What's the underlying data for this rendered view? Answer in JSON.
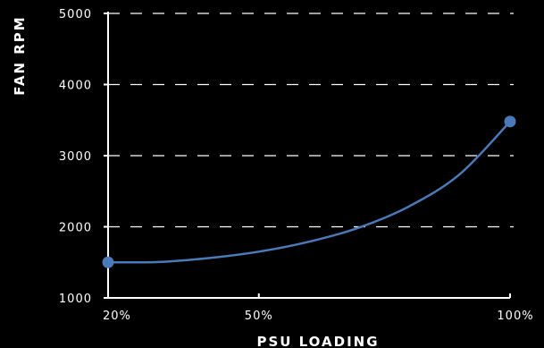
{
  "chart_data": {
    "type": "line",
    "xlabel": "PSU LOADING",
    "ylabel": "FAN RPM",
    "x_ticks": [
      "20%",
      "50%",
      "100%"
    ],
    "y_ticks": [
      "1000",
      "2000",
      "3000",
      "4000",
      "5000"
    ],
    "xlim": [
      20,
      100
    ],
    "ylim": [
      1000,
      5000
    ],
    "grid": "horizontal-dashed",
    "series": [
      {
        "x": [
          20,
          30,
          40,
          50,
          60,
          70,
          80,
          90,
          100
        ],
        "y": [
          1500,
          1505,
          1560,
          1650,
          1790,
          1990,
          2290,
          2740,
          3480
        ],
        "markers": [
          {
            "x": 20,
            "y": 1500
          },
          {
            "x": 100,
            "y": 3480
          }
        ]
      }
    ],
    "colors": {
      "background": "#000000",
      "axis": "#ffffff",
      "grid": "#ffffff",
      "line": "#4a7ab8",
      "marker": "#4a7ab8"
    }
  }
}
